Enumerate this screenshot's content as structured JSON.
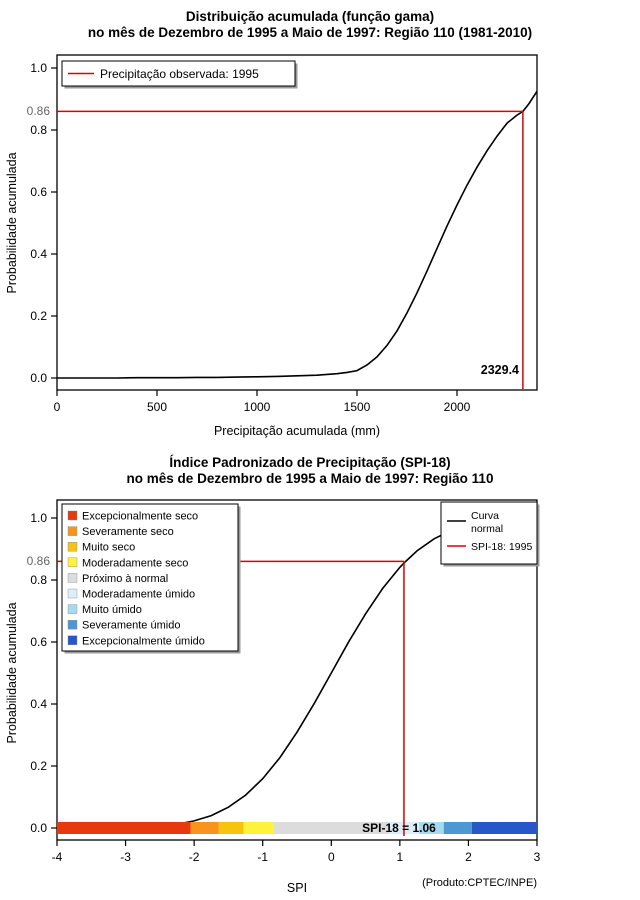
{
  "accent_red": "#DD0000",
  "chart_data": [
    {
      "type": "line",
      "title_line1": "Distribuição acumulada (função gama)",
      "title_line2": "no mês de Dezembro de 1995 a Maio de 1997: Região 110 (1981-2010)",
      "xlabel": "Precipitação acumulada (mm)",
      "ylabel": "Probabilidade acumulada",
      "xlim": [
        0,
        2400
      ],
      "ylim": [
        0,
        1
      ],
      "xticks": [
        0,
        500,
        1000,
        1500,
        2000
      ],
      "yticks": [
        "0.0",
        "0.2",
        "0.4",
        "0.6",
        "0.8",
        "1.0"
      ],
      "grid": false,
      "curve_color": "#000000",
      "accent": "#DD0000",
      "legend": {
        "label": "Precipitação observada: 1995",
        "position": "top-left"
      },
      "marker": {
        "x": 2329.4,
        "y": 0.86,
        "x_label": "2329.4",
        "y_label": "0.86"
      },
      "series": {
        "name": "Gamma CDF",
        "x": [
          0,
          100,
          200,
          300,
          400,
          500,
          600,
          700,
          800,
          900,
          1000,
          1100,
          1200,
          1300,
          1400,
          1450,
          1500,
          1550,
          1600,
          1650,
          1700,
          1750,
          1800,
          1850,
          1900,
          1950,
          2000,
          2050,
          2100,
          2150,
          2200,
          2250,
          2300,
          2329.4,
          2360,
          2400
        ],
        "y": [
          0,
          0,
          0,
          0,
          0.001,
          0.001,
          0.001,
          0.002,
          0.002,
          0.003,
          0.004,
          0.005,
          0.007,
          0.009,
          0.014,
          0.018,
          0.024,
          0.042,
          0.068,
          0.105,
          0.152,
          0.21,
          0.275,
          0.345,
          0.418,
          0.49,
          0.558,
          0.622,
          0.68,
          0.733,
          0.78,
          0.822,
          0.848,
          0.86,
          0.885,
          0.925
        ]
      }
    },
    {
      "type": "line",
      "title_line1": "Índice Padronizado de Precipitação (SPI-18)",
      "title_line2": "no mês de Dezembro de 1995 a Maio de 1997: Região 110",
      "xlabel": "SPI",
      "ylabel": "Probabilidade acumulada",
      "credit": "(Produto:CPTEC/INPE)",
      "xlim": [
        -4,
        3
      ],
      "ylim": [
        0,
        1
      ],
      "xticks": [
        -4,
        -3,
        -2,
        -1,
        0,
        1,
        2,
        3
      ],
      "yticks": [
        "0.0",
        "0.2",
        "0.4",
        "0.6",
        "0.8",
        "1.0"
      ],
      "grid": false,
      "curve_color": "#000000",
      "accent": "#DD0000",
      "legend_right": {
        "curve_label_line1": "Curva",
        "curve_label_line2": "normal",
        "spi_label": "SPI-18: 1995",
        "position": "top-right"
      },
      "marker": {
        "x": 1.06,
        "y": 0.86,
        "y_label": "0.86",
        "bar_label": "SPI-18 = 1.06"
      },
      "categories": [
        {
          "label": "Excepcionalmente seco",
          "from": -4,
          "to": -2.05,
          "color": "#E8380D"
        },
        {
          "label": "Severamente seco",
          "from": -2.05,
          "to": -1.64,
          "color": "#F8941E"
        },
        {
          "label": "Muito seco",
          "from": -1.64,
          "to": -1.28,
          "color": "#F6C40E"
        },
        {
          "label": "Moderadamente seco",
          "from": -1.28,
          "to": -0.84,
          "color": "#FFF23B"
        },
        {
          "label": "Próximo à normal",
          "from": -0.84,
          "to": 0.84,
          "color": "#DCDCDC"
        },
        {
          "label": "Moderadamente úmido",
          "from": 0.84,
          "to": 1.28,
          "color": "#DCEFF8"
        },
        {
          "label": "Muito úmido",
          "from": 1.28,
          "to": 1.64,
          "color": "#A5DBF0"
        },
        {
          "label": "Severamente úmido",
          "from": 1.64,
          "to": 2.05,
          "color": "#4D97D2"
        },
        {
          "label": "Excepcionalmente úmido",
          "from": 2.05,
          "to": 3,
          "color": "#2857C8"
        }
      ],
      "series": {
        "name": "Normal CDF",
        "x": [
          -4,
          -3.5,
          -3,
          -2.75,
          -2.5,
          -2.25,
          -2,
          -1.75,
          -1.5,
          -1.25,
          -1,
          -0.75,
          -0.5,
          -0.25,
          0,
          0.25,
          0.5,
          0.75,
          1,
          1.06,
          1.25,
          1.5,
          1.75,
          2,
          2.25,
          2.5,
          2.75,
          3
        ],
        "y": [
          0.0,
          0.0,
          0.001,
          0.003,
          0.006,
          0.012,
          0.023,
          0.04,
          0.067,
          0.106,
          0.159,
          0.227,
          0.309,
          0.401,
          0.5,
          0.599,
          0.691,
          0.773,
          0.841,
          0.855,
          0.894,
          0.933,
          0.96,
          0.977,
          0.988,
          0.994,
          0.997,
          0.999
        ]
      }
    }
  ]
}
